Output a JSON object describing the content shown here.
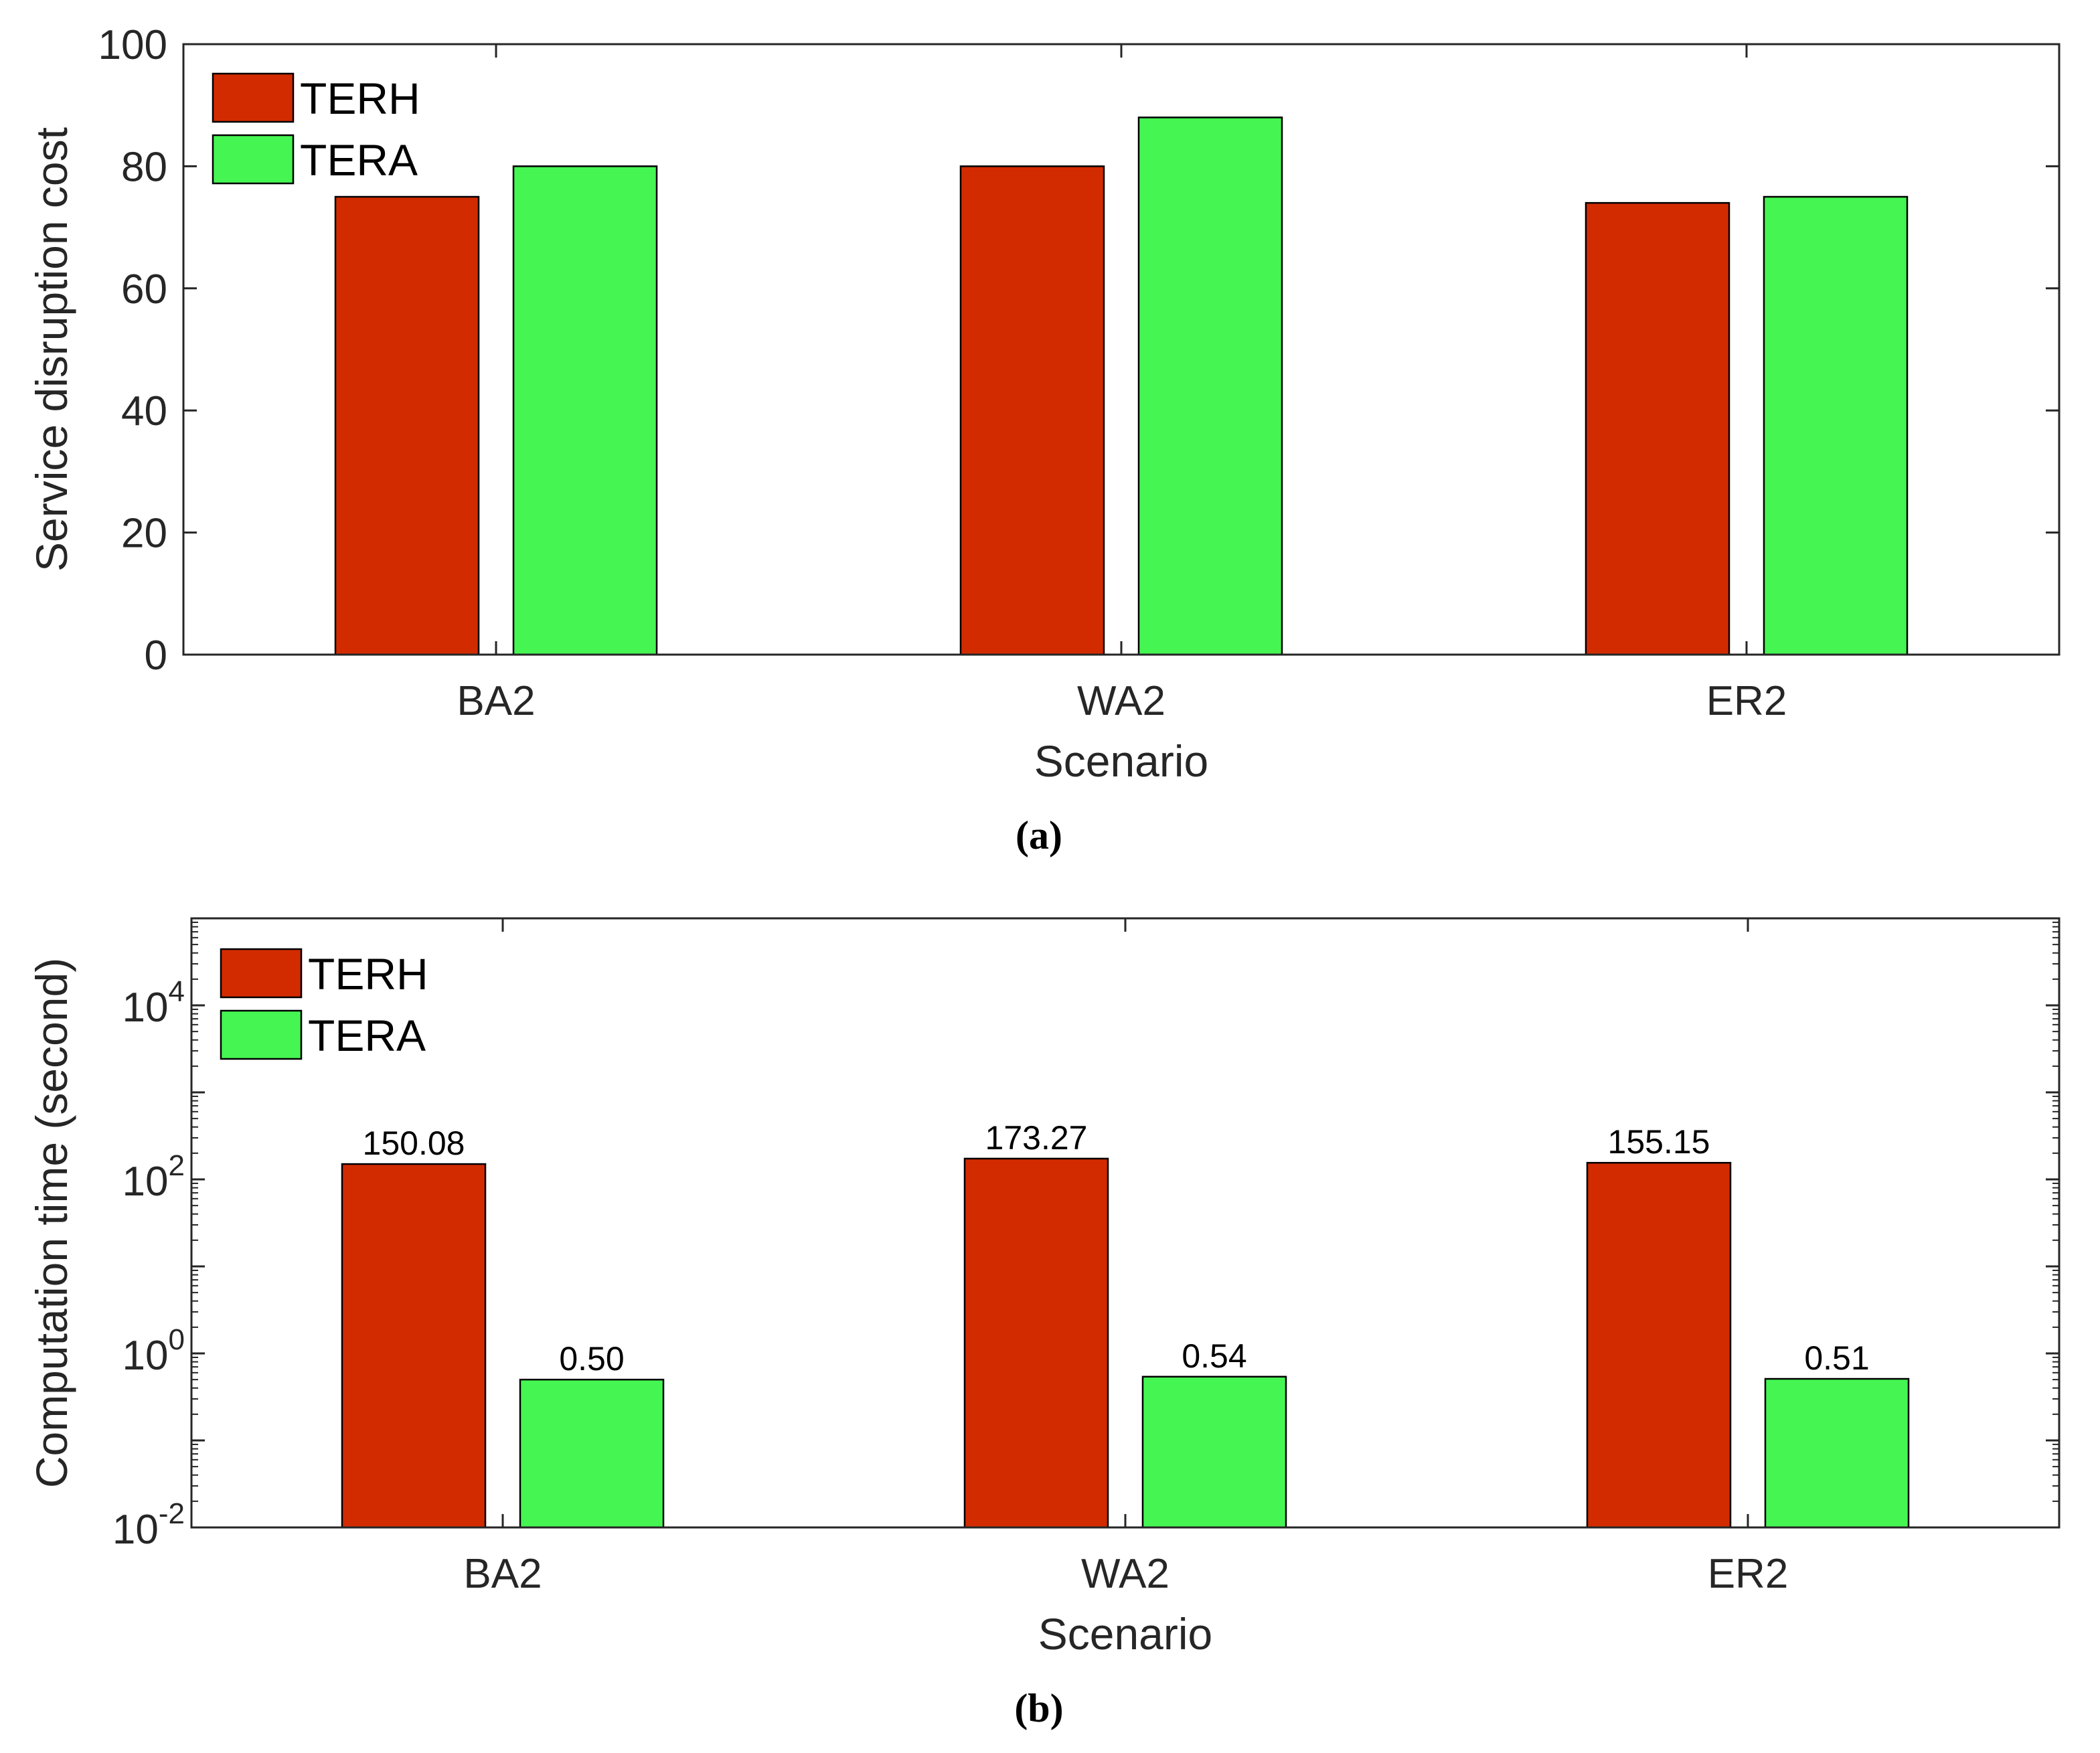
{
  "colors": {
    "terh": "#d22b00",
    "tera": "#45f552"
  },
  "chart_data": [
    {
      "type": "bar",
      "title": "",
      "xlabel": "Scenario",
      "ylabel": "Service disruption cost",
      "categories": [
        "BA2",
        "WA2",
        "ER2"
      ],
      "ylim": [
        0,
        100
      ],
      "yticks": [
        "0",
        "20",
        "40",
        "60",
        "80",
        "100"
      ],
      "yscale": "linear",
      "legend_position": "top-left",
      "series": [
        {
          "name": "TERH",
          "values": [
            75,
            80,
            74
          ]
        },
        {
          "name": "TERA",
          "values": [
            80,
            88,
            75
          ]
        }
      ],
      "caption": "(a)"
    },
    {
      "type": "bar",
      "title": "",
      "xlabel": "Scenario",
      "ylabel": "Computation time (second)",
      "categories": [
        "BA2",
        "WA2",
        "ER2"
      ],
      "ylim": [
        0.01,
        100000
      ],
      "yscale": "log",
      "yticks": [
        {
          "base": "10",
          "exp": "-2"
        },
        {
          "base": "10",
          "exp": "0"
        },
        {
          "base": "10",
          "exp": "2"
        },
        {
          "base": "10",
          "exp": "4"
        }
      ],
      "legend_position": "top-left",
      "series": [
        {
          "name": "TERH",
          "values": [
            150.08,
            173.27,
            155.15
          ],
          "labels": [
            "150.08",
            "173.27",
            "155.15"
          ]
        },
        {
          "name": "TERA",
          "values": [
            0.5,
            0.54,
            0.51
          ],
          "labels": [
            "0.50",
            "0.54",
            "0.51"
          ]
        }
      ],
      "caption": "(b)"
    }
  ]
}
